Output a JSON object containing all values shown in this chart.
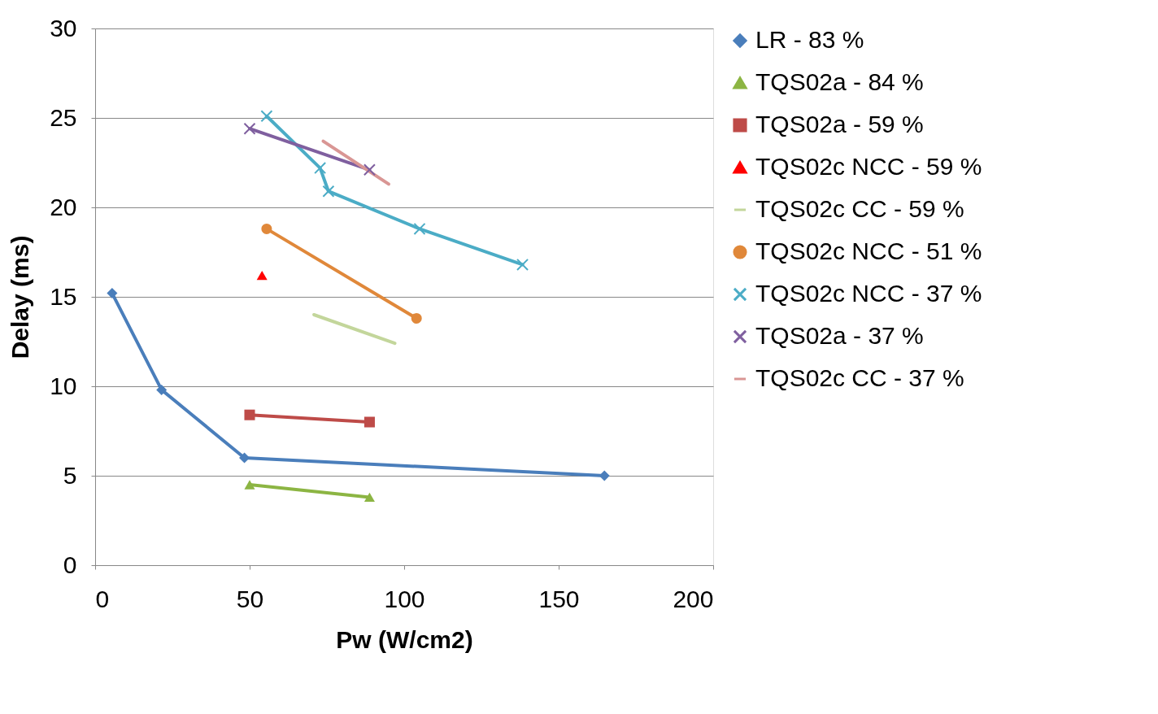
{
  "chart_data": {
    "type": "line",
    "xlabel": "Pw (W/cm2)",
    "ylabel": "Delay (ms)",
    "xlim": [
      0,
      200
    ],
    "xticks": [
      0,
      50,
      100,
      150,
      200
    ],
    "ylim": [
      0,
      30
    ],
    "yticks": [
      0,
      5,
      10,
      15,
      20,
      25,
      30
    ],
    "grid": "y",
    "legend": "right",
    "series": [
      {
        "name": "LR - 83 %",
        "color": "#4a7ebb",
        "marker": "diamond",
        "x": [
          5.5,
          21.5,
          48.3,
          164.8
        ],
        "values": [
          15.2,
          9.8,
          6.0,
          5.0
        ]
      },
      {
        "name": "TQS02a - 84 %",
        "color": "#8cb543",
        "marker": "triangle",
        "x": [
          50,
          88.8
        ],
        "values": [
          4.5,
          3.8
        ]
      },
      {
        "name": "TQS02a - 59 %",
        "color": "#be4b48",
        "marker": "square",
        "x": [
          50,
          88.8
        ],
        "values": [
          8.4,
          8.0
        ]
      },
      {
        "name": "TQS02c NCC - 59 %",
        "color": "#ff0000",
        "marker": "triangle",
        "x": [
          54
        ],
        "values": [
          16.2
        ]
      },
      {
        "name": "TQS02c CC - 59 %",
        "color": "#c3d69b",
        "marker": "none",
        "x": [
          70.8,
          97
        ],
        "values": [
          14.0,
          12.4
        ]
      },
      {
        "name": "TQS02c NCC - 51 %",
        "color": "#e0883a",
        "marker": "circle",
        "x": [
          55.5,
          104
        ],
        "values": [
          18.8,
          13.8
        ]
      },
      {
        "name": "TQS02c NCC - 37 %",
        "color": "#4bacc6",
        "marker": "cross",
        "x": [
          55.5,
          72.8,
          75.5,
          105,
          138.3
        ],
        "values": [
          25.1,
          22.2,
          20.9,
          18.8,
          16.8
        ]
      },
      {
        "name": "TQS02a - 37 %",
        "color": "#7f5f9f",
        "marker": "cross",
        "x": [
          50,
          88.8
        ],
        "values": [
          24.4,
          22.1
        ]
      },
      {
        "name": "TQS02c CC - 37 %",
        "color": "#d99694",
        "marker": "none",
        "x": [
          73.8,
          95
        ],
        "values": [
          23.7,
          21.3
        ]
      }
    ]
  }
}
